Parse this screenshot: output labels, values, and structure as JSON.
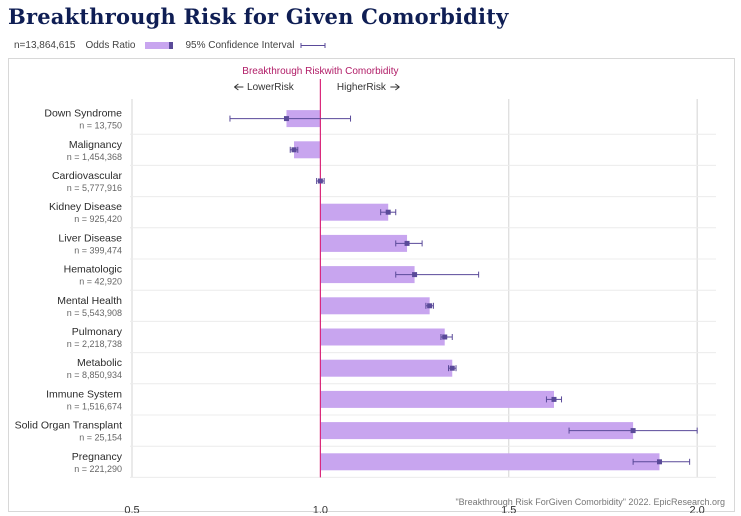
{
  "title": "Breakthrough Risk for Given Comorbidity",
  "legend": {
    "n_total": "n=13,864,615",
    "odds_ratio_label": "Odds Ratio",
    "ci_label": "95% Confidence Interval"
  },
  "source": "\"Breakthrough Risk ForGiven Comorbidity\" 2022. EpicResearch.org",
  "colors": {
    "bar": "#c8a5ef",
    "point": "#5a4a99",
    "reference_line": "#d9277a",
    "title": "#0f1e54"
  },
  "chart_data": {
    "type": "bar",
    "orientation": "horizontal",
    "reference_label": "Breakthrough Riskwith Comorbidity",
    "lower_label": "LowerRisk",
    "higher_label": "HigherRisk",
    "reference_value": 1.0,
    "xlim": [
      0.5,
      2.05
    ],
    "x_ticks": [
      "0.5",
      "1.0",
      "1.5",
      "2.0"
    ],
    "x_tick_values": [
      0.5,
      1.0,
      1.5,
      2.0
    ],
    "grid": "vertical",
    "rows": [
      {
        "category": "Down Syndrome",
        "n": "n = 13,750",
        "odds_ratio": 0.91,
        "ci": [
          0.76,
          1.08
        ]
      },
      {
        "category": "Malignancy",
        "n": "n = 1,454,368",
        "odds_ratio": 0.93,
        "ci": [
          0.92,
          0.94
        ]
      },
      {
        "category": "Cardiovascular",
        "n": "n = 5,777,916",
        "odds_ratio": 1.0,
        "ci": [
          0.99,
          1.01
        ]
      },
      {
        "category": "Kidney Disease",
        "n": "n = 925,420",
        "odds_ratio": 1.18,
        "ci": [
          1.16,
          1.2
        ]
      },
      {
        "category": "Liver Disease",
        "n": "n = 399,474",
        "odds_ratio": 1.23,
        "ci": [
          1.2,
          1.27
        ]
      },
      {
        "category": "Hematologic",
        "n": "n = 42,920",
        "odds_ratio": 1.25,
        "ci": [
          1.2,
          1.42
        ]
      },
      {
        "category": "Mental Health",
        "n": "n = 5,543,908",
        "odds_ratio": 1.29,
        "ci": [
          1.28,
          1.3
        ]
      },
      {
        "category": "Pulmonary",
        "n": "n = 2,218,738",
        "odds_ratio": 1.33,
        "ci": [
          1.32,
          1.35
        ]
      },
      {
        "category": "Metabolic",
        "n": "n = 8,850,934",
        "odds_ratio": 1.35,
        "ci": [
          1.34,
          1.36
        ]
      },
      {
        "category": "Immune System",
        "n": "n = 1,516,674",
        "odds_ratio": 1.62,
        "ci": [
          1.6,
          1.64
        ]
      },
      {
        "category": "Solid Organ Transplant",
        "n": "n = 25,154",
        "odds_ratio": 1.83,
        "ci": [
          1.66,
          2.0
        ]
      },
      {
        "category": "Pregnancy",
        "n": "n = 221,290",
        "odds_ratio": 1.9,
        "ci": [
          1.83,
          1.98
        ]
      }
    ]
  }
}
